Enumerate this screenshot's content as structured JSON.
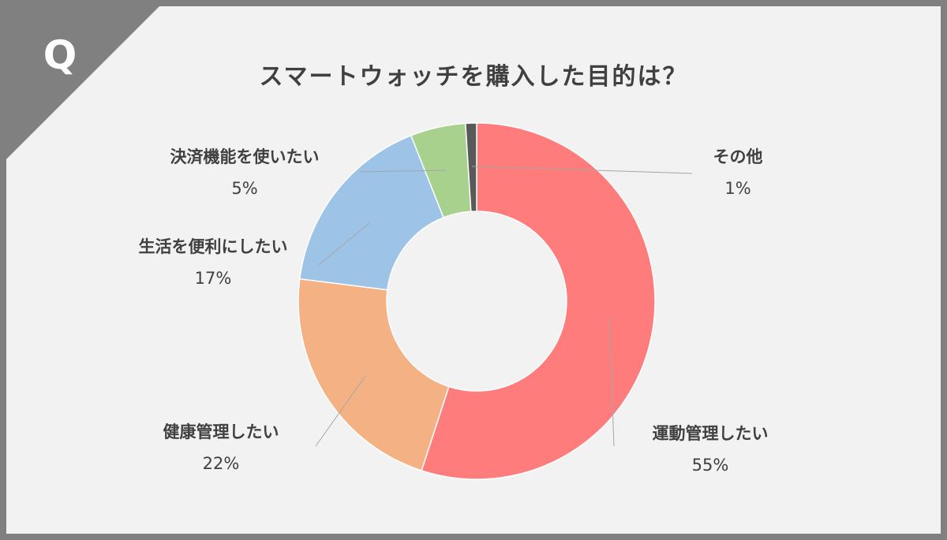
{
  "badge": {
    "letter": "Q"
  },
  "colors": {
    "frame": "#808080",
    "background": "#f2f2f2",
    "text": "#404040",
    "leader": "#a6a6a6"
  },
  "chart_data": {
    "type": "pie",
    "variant": "donut",
    "title": "スマートウォッチを購入した目的は？",
    "slices": [
      {
        "label": "運動管理したい",
        "value": 55,
        "value_label": "55%",
        "color": "#ff7c7c"
      },
      {
        "label": "健康管理したい",
        "value": 22,
        "value_label": "22%",
        "color": "#f4b183"
      },
      {
        "label": "生活を便利にしたい",
        "value": 17,
        "value_label": "17%",
        "color": "#9dc3e6"
      },
      {
        "label": "決済機能を使いたい",
        "value": 5,
        "value_label": "5%",
        "color": "#a9d18e"
      },
      {
        "label": "その他",
        "value": 1,
        "value_label": "1%",
        "color": "#595959"
      }
    ],
    "start_angle": "12 o'clock",
    "direction": "clockwise",
    "legend": "none"
  }
}
